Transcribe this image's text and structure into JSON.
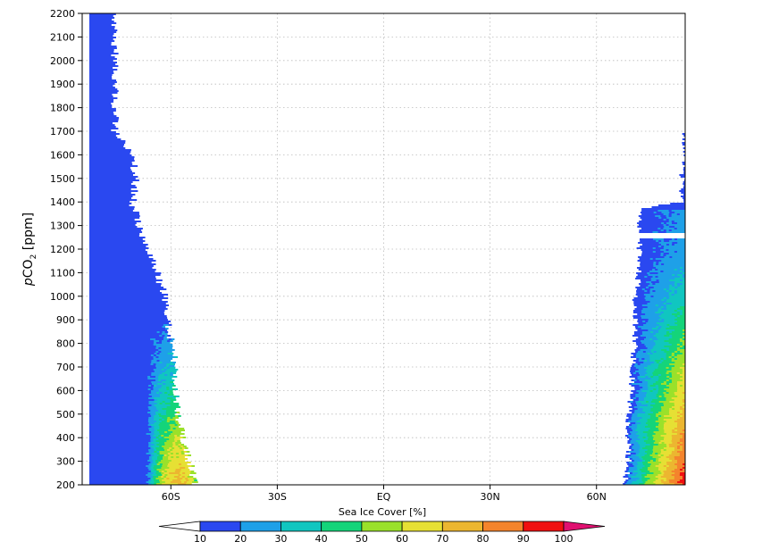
{
  "chart_data": {
    "type": "heatmap",
    "title": "",
    "xlabel": "Sea Ice Cover [%]",
    "ylabel_parts": {
      "italic": "p",
      "main": "CO",
      "sub": "2",
      "unit": " [ppm]"
    },
    "x_tick_labels": [
      "60S",
      "30S",
      "EQ",
      "30N",
      "60N"
    ],
    "x_tick_values": [
      -60,
      -30,
      0,
      30,
      60
    ],
    "xlim": [
      -85,
      85
    ],
    "y_ticks": [
      200,
      300,
      400,
      500,
      600,
      700,
      800,
      900,
      1000,
      1100,
      1200,
      1300,
      1400,
      1500,
      1600,
      1700,
      1800,
      1900,
      2000,
      2100,
      2200
    ],
    "ylim": [
      200,
      2200
    ],
    "grid": true,
    "colorbar": {
      "labels": [
        "10",
        "20",
        "30",
        "40",
        "50",
        "60",
        "70",
        "80",
        "90",
        "100"
      ],
      "levels": [
        10,
        20,
        30,
        40,
        50,
        60,
        70,
        80,
        90,
        100
      ],
      "colors": [
        "#2a48f0",
        "#1ea0e8",
        "#10c6c0",
        "#14d47a",
        "#9ae12a",
        "#e6e034",
        "#ecb630",
        "#f4842c",
        "#f01010"
      ],
      "under_color": "#ffffff",
      "over_color": "#e01070"
    },
    "southern_edge": [
      {
        "pco2": 200,
        "lat": -53
      },
      {
        "pco2": 300,
        "lat": -55
      },
      {
        "pco2": 400,
        "lat": -57
      },
      {
        "pco2": 500,
        "lat": -58
      },
      {
        "pco2": 600,
        "lat": -59
      },
      {
        "pco2": 700,
        "lat": -59
      },
      {
        "pco2": 800,
        "lat": -60
      },
      {
        "pco2": 900,
        "lat": -61
      },
      {
        "pco2": 1000,
        "lat": -62
      },
      {
        "pco2": 1100,
        "lat": -64
      },
      {
        "pco2": 1200,
        "lat": -67
      },
      {
        "pco2": 1300,
        "lat": -69
      },
      {
        "pco2": 1400,
        "lat": -71
      },
      {
        "pco2": 1500,
        "lat": -70
      },
      {
        "pco2": 1600,
        "lat": -71
      },
      {
        "pco2": 1700,
        "lat": -76
      },
      {
        "pco2": 1800,
        "lat": -76
      },
      {
        "pco2": 1900,
        "lat": -76
      },
      {
        "pco2": 2000,
        "lat": -76
      },
      {
        "pco2": 2100,
        "lat": -76
      },
      {
        "pco2": 2200,
        "lat": -76
      }
    ],
    "northern_edge": [
      {
        "pco2": 200,
        "lat": 68
      },
      {
        "pco2": 300,
        "lat": 69
      },
      {
        "pco2": 400,
        "lat": 69
      },
      {
        "pco2": 500,
        "lat": 69
      },
      {
        "pco2": 600,
        "lat": 70
      },
      {
        "pco2": 700,
        "lat": 70
      },
      {
        "pco2": 800,
        "lat": 71
      },
      {
        "pco2": 900,
        "lat": 71
      },
      {
        "pco2": 1000,
        "lat": 71
      },
      {
        "pco2": 1100,
        "lat": 72
      },
      {
        "pco2": 1200,
        "lat": 72
      },
      {
        "pco2": 1300,
        "lat": 72
      },
      {
        "pco2": 1370,
        "lat": 72
      },
      {
        "pco2": 1400,
        "lat": 84
      },
      {
        "pco2": 1500,
        "lat": 84
      },
      {
        "pco2": 1600,
        "lat": 85
      },
      {
        "pco2": 1700,
        "lat": 85
      }
    ]
  }
}
